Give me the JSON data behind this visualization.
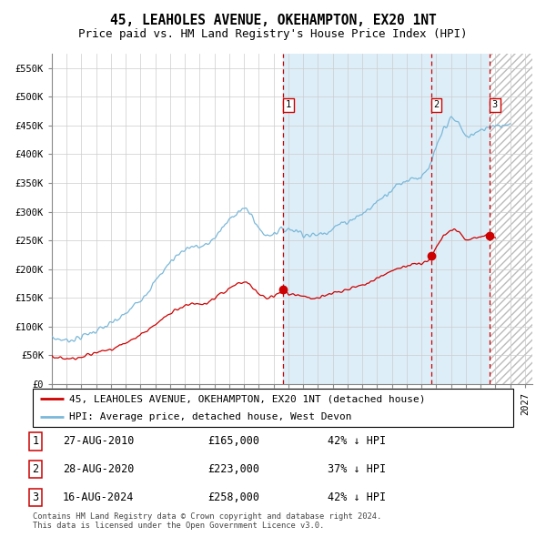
{
  "title": "45, LEAHOLES AVENUE, OKEHAMPTON, EX20 1NT",
  "subtitle": "Price paid vs. HM Land Registry's House Price Index (HPI)",
  "ylim": [
    0,
    575000
  ],
  "yticks": [
    0,
    50000,
    100000,
    150000,
    200000,
    250000,
    300000,
    350000,
    400000,
    450000,
    500000,
    550000
  ],
  "ytick_labels": [
    "£0",
    "£50K",
    "£100K",
    "£150K",
    "£200K",
    "£250K",
    "£300K",
    "£350K",
    "£400K",
    "£450K",
    "£500K",
    "£550K"
  ],
  "xstart": 1995.0,
  "xend": 2027.5,
  "transaction_dates": [
    2010.65,
    2020.65,
    2024.62
  ],
  "transaction_prices": [
    165000,
    223000,
    258000
  ],
  "transaction_labels": [
    "1",
    "2",
    "3"
  ],
  "transaction_date_strs": [
    "27-AUG-2010",
    "28-AUG-2020",
    "16-AUG-2024"
  ],
  "transaction_price_strs": [
    "£165,000",
    "£223,000",
    "£258,000"
  ],
  "transaction_hpi_strs": [
    "42% ↓ HPI",
    "37% ↓ HPI",
    "42% ↓ HPI"
  ],
  "hpi_color": "#7ab8d9",
  "property_color": "#cc0000",
  "vline_color": "#cc0000",
  "grid_color": "#cccccc",
  "hpi_bg_color": "#ddeef8",
  "legend_label_property": "45, LEAHOLES AVENUE, OKEHAMPTON, EX20 1NT (detached house)",
  "legend_label_hpi": "HPI: Average price, detached house, West Devon",
  "footnote": "Contains HM Land Registry data © Crown copyright and database right 2024.\nThis data is licensed under the Open Government Licence v3.0.",
  "title_fontsize": 10.5,
  "subtitle_fontsize": 9,
  "tick_fontsize": 7.5,
  "legend_fontsize": 8,
  "table_fontsize": 8.5
}
